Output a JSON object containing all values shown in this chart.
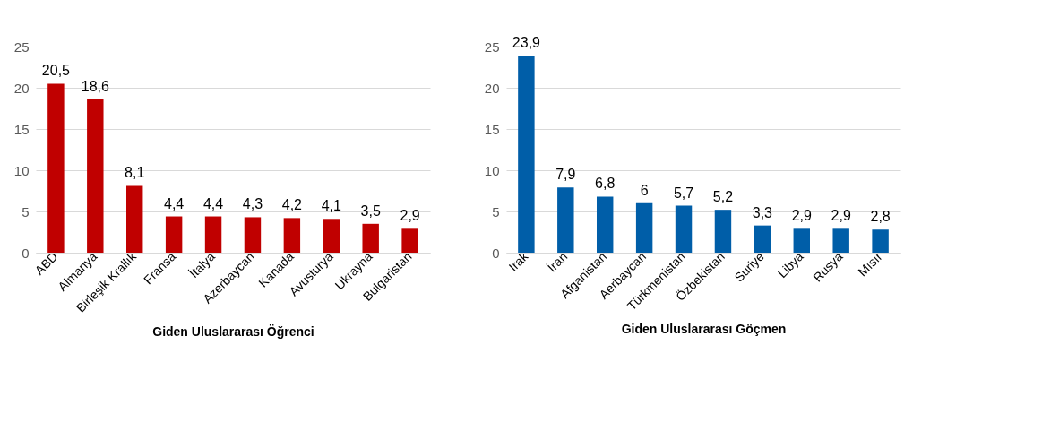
{
  "chart_data": [
    {
      "type": "bar",
      "xlabel": "Giden Uluslararası Öğrenci",
      "categories": [
        "ABD",
        "Almanya",
        "Birleşik Krallık",
        "Fransa",
        "İtalya",
        "Azerbaycan",
        "Kanada",
        "Avusturya",
        "Ukrayna",
        "Bulgaristan"
      ],
      "values": [
        20.5,
        18.6,
        8.1,
        4.4,
        4.4,
        4.3,
        4.2,
        4.1,
        3.5,
        2.9
      ],
      "value_labels": [
        "20,5",
        "18,6",
        "8,1",
        "4,4",
        "4,4",
        "4,3",
        "4,2",
        "4,1",
        "3,5",
        "2,9"
      ],
      "color": "#c00000",
      "ylim": [
        0,
        25
      ],
      "yticks": [
        0,
        5,
        10,
        15,
        20,
        25
      ],
      "grid": "y"
    },
    {
      "type": "bar",
      "xlabel": "Giden Uluslararası Göçmen",
      "categories": [
        "Irak",
        "İran",
        "Afganistan",
        "Aerbaycan",
        "Türkmenistan",
        "Özbekistan",
        "Suriye",
        "Libya",
        "Rusya",
        "Mısır"
      ],
      "values": [
        23.9,
        7.9,
        6.8,
        6,
        5.7,
        5.2,
        3.3,
        2.9,
        2.9,
        2.8
      ],
      "value_labels": [
        "23,9",
        "7,9",
        "6,8",
        "6",
        "5,7",
        "5,2",
        "3,3",
        "2,9",
        "2,9",
        "2,8"
      ],
      "color": "#005ea8",
      "ylim": [
        0,
        25
      ],
      "yticks": [
        0,
        5,
        10,
        15,
        20,
        25
      ],
      "grid": "y"
    }
  ]
}
